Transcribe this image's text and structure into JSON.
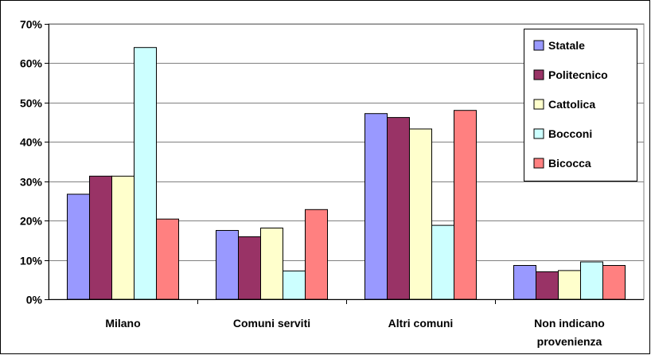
{
  "chart_data": {
    "type": "bar",
    "categories": [
      "Milano",
      "Comuni serviti",
      "Altri comuni",
      "Non indicano provenienza"
    ],
    "series": [
      {
        "name": "Statale",
        "color": "#9999ff",
        "values": [
          26.7,
          17.5,
          47.2,
          8.6
        ]
      },
      {
        "name": "Politecnico",
        "color": "#993366",
        "values": [
          31.3,
          15.9,
          46.2,
          7.0
        ]
      },
      {
        "name": "Cattolica",
        "color": "#ffffcc",
        "values": [
          31.3,
          18.1,
          43.3,
          7.3
        ]
      },
      {
        "name": "Bocconi",
        "color": "#ccffff",
        "values": [
          64.0,
          7.2,
          18.8,
          9.5
        ]
      },
      {
        "name": "Bicocca",
        "color": "#ff8080",
        "values": [
          20.4,
          22.8,
          48.0,
          8.6
        ]
      }
    ],
    "ylim": [
      0,
      70
    ],
    "yticks": [
      0,
      10,
      20,
      30,
      40,
      50,
      60,
      70
    ],
    "ytick_labels": [
      "0%",
      "10%",
      "20%",
      "30%",
      "40%",
      "50%",
      "60%",
      "70%"
    ],
    "category_label_lines": [
      [
        "Milano"
      ],
      [
        "Comuni serviti"
      ],
      [
        "Altri comuni"
      ],
      [
        "Non indicano",
        "provenienza"
      ]
    ],
    "grid": true,
    "legend_position": "top-right",
    "title": "",
    "xlabel": "",
    "ylabel": ""
  }
}
